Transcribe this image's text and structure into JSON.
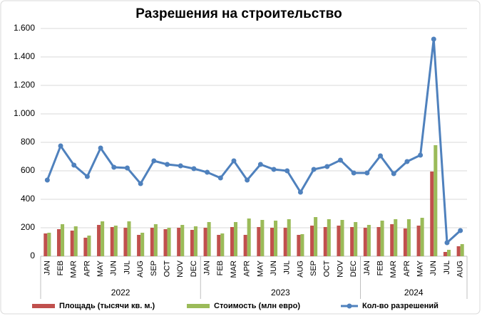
{
  "chart_data": {
    "type": "bar_line",
    "title": "Разрешения на строительство",
    "categories": [
      "JAN",
      "FEB",
      "MAR",
      "APR",
      "MAY",
      "JUN",
      "JUL",
      "AUG",
      "SEP",
      "OCT",
      "NOV",
      "DEC",
      "JAN",
      "FEB",
      "MAR",
      "APR",
      "MAY",
      "JUN",
      "JUL",
      "AUG",
      "SEP",
      "OCT",
      "NOV",
      "DEC",
      "JAN",
      "FEB",
      "MAR",
      "APR",
      "MAY",
      "JUN",
      "JUL",
      "AUG"
    ],
    "groups": [
      "2022",
      "2023",
      "2024"
    ],
    "series": [
      {
        "name": "Площадь (тысячи кв. м.)",
        "type": "bar",
        "color": "#c0504d",
        "values": [
          160,
          190,
          180,
          130,
          220,
          205,
          200,
          150,
          200,
          190,
          200,
          185,
          200,
          150,
          205,
          150,
          205,
          200,
          200,
          150,
          215,
          205,
          215,
          205,
          200,
          205,
          225,
          195,
          215,
          595,
          30,
          70
        ]
      },
      {
        "name": "Стоимость (млн евро)",
        "type": "bar",
        "color": "#9bbb59",
        "values": [
          165,
          225,
          210,
          145,
          245,
          215,
          245,
          165,
          225,
          200,
          220,
          210,
          240,
          160,
          240,
          265,
          255,
          250,
          260,
          155,
          275,
          260,
          255,
          240,
          220,
          250,
          260,
          260,
          270,
          780,
          45,
          85
        ]
      },
      {
        "name": "Кол-во разрешений",
        "type": "line",
        "color": "#4f81bd",
        "values": [
          535,
          775,
          640,
          560,
          760,
          625,
          620,
          510,
          670,
          645,
          635,
          615,
          590,
          550,
          670,
          535,
          645,
          610,
          600,
          450,
          610,
          630,
          675,
          585,
          585,
          705,
          580,
          665,
          710,
          1525,
          95,
          180
        ]
      }
    ],
    "ylim": [
      0,
      1600
    ],
    "yticks": [
      0,
      200,
      400,
      600,
      800,
      {
        "value": 1000,
        "label": "1.000"
      },
      {
        "value": 1200,
        "label": "1.200"
      },
      {
        "value": 1400,
        "label": "1.400"
      },
      {
        "value": 1600,
        "label": "1.600"
      }
    ],
    "grid": true,
    "legend": "bottom"
  }
}
